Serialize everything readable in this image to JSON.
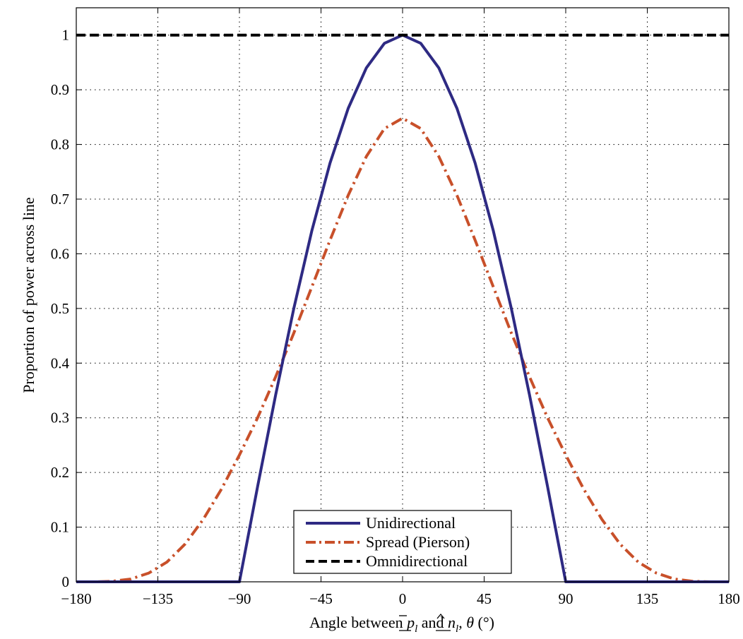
{
  "chart_data": {
    "type": "line",
    "xlabel": "Angle between p̲̄_l and n̲̂_l, θ (°)",
    "xlabel_parts": {
      "prefix": "Angle between ",
      "p_symbol": "p",
      "p_sub": "l",
      "and": " and ",
      "n_symbol": "n",
      "n_sub": "l",
      "suffix_pre": ", ",
      "theta": "θ",
      "suffix_post": " (°)"
    },
    "ylabel": "Proportion of power across line",
    "xlim": [
      -180,
      180
    ],
    "ylim": [
      0,
      1.05
    ],
    "grid": true,
    "grid_style": "dotted",
    "legend_position": "bottom-center",
    "xticks": [
      -180,
      -135,
      -90,
      -45,
      0,
      45,
      90,
      135,
      180
    ],
    "xtick_labels": [
      "−180",
      "−135",
      "−90",
      "−45",
      "0",
      "45",
      "90",
      "135",
      "180"
    ],
    "yticks": [
      0,
      0.1,
      0.2,
      0.3,
      0.4,
      0.5,
      0.6,
      0.7,
      0.8,
      0.9,
      1
    ],
    "ytick_labels": [
      "0",
      "0.1",
      "0.2",
      "0.3",
      "0.4",
      "0.5",
      "0.6",
      "0.7",
      "0.8",
      "0.9",
      "1"
    ],
    "x": [
      -180,
      -170,
      -160,
      -150,
      -140,
      -130,
      -120,
      -110,
      -100,
      -90,
      -80,
      -70,
      -60,
      -50,
      -40,
      -30,
      -20,
      -10,
      0,
      10,
      20,
      30,
      40,
      50,
      60,
      70,
      80,
      90,
      100,
      110,
      120,
      130,
      140,
      150,
      160,
      170,
      180
    ],
    "series": [
      {
        "name": "Unidirectional",
        "color": "#2e2a83",
        "style": "solid",
        "values": [
          0,
          0,
          0,
          0,
          0,
          0,
          0,
          0,
          0,
          0,
          0.174,
          0.342,
          0.5,
          0.643,
          0.766,
          0.866,
          0.94,
          0.985,
          1,
          0.985,
          0.94,
          0.866,
          0.766,
          0.643,
          0.5,
          0.342,
          0.174,
          0,
          0,
          0,
          0,
          0,
          0,
          0,
          0,
          0,
          0
        ]
      },
      {
        "name": "Spread (Pierson)",
        "color": "#c8502a",
        "style": "dashdot",
        "values": [
          0,
          0,
          0.001,
          0.005,
          0.016,
          0.036,
          0.069,
          0.114,
          0.169,
          0.232,
          0.3,
          0.375,
          0.455,
          0.54,
          0.625,
          0.707,
          0.778,
          0.829,
          0.848,
          0.829,
          0.778,
          0.707,
          0.625,
          0.54,
          0.455,
          0.375,
          0.3,
          0.232,
          0.169,
          0.114,
          0.069,
          0.036,
          0.016,
          0.005,
          0.001,
          0,
          0
        ]
      },
      {
        "name": "Omnidirectional",
        "color": "#000000",
        "style": "dashed",
        "values": [
          1,
          1,
          1,
          1,
          1,
          1,
          1,
          1,
          1,
          1,
          1,
          1,
          1,
          1,
          1,
          1,
          1,
          1,
          1,
          1,
          1,
          1,
          1,
          1,
          1,
          1,
          1,
          1,
          1,
          1,
          1,
          1,
          1,
          1,
          1,
          1,
          1
        ]
      }
    ]
  }
}
